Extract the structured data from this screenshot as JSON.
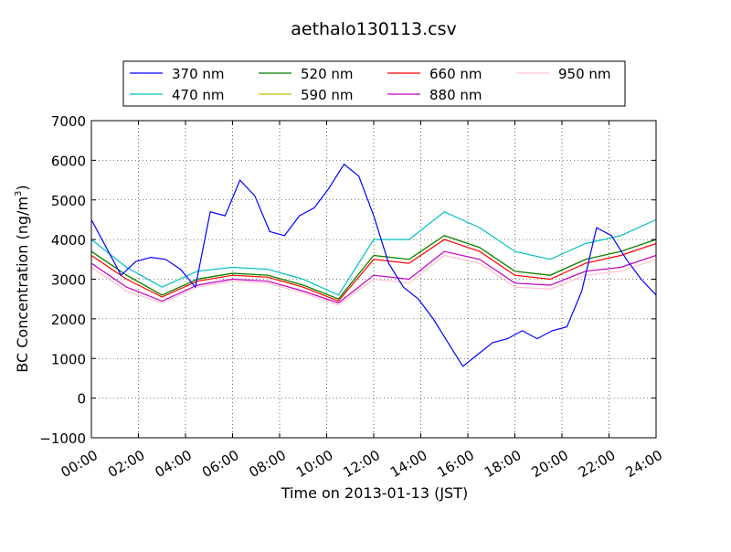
{
  "chart_data": {
    "type": "line",
    "title": "aethalo130113.csv",
    "xlabel": "Time on 2013-01-13 (JST)",
    "ylabel": "BC Concentration (ng/m³)",
    "ylabel_main": "BC Concentration (ng/m",
    "ylabel_sup": "3",
    "ylabel_end": ")",
    "xlim": [
      "00:00",
      "24:00"
    ],
    "ylim": [
      -1000,
      7000
    ],
    "grid": true,
    "legend_position": "top",
    "x_ticks": [
      "00:00",
      "02:00",
      "04:00",
      "06:00",
      "08:00",
      "10:00",
      "12:00",
      "14:00",
      "16:00",
      "18:00",
      "20:00",
      "22:00",
      "24:00"
    ],
    "y_ticks": [
      "−1000",
      "0",
      "1000",
      "2000",
      "3000",
      "4000",
      "5000",
      "6000",
      "7000"
    ],
    "x_hours": [
      0,
      0.5,
      1,
      1.5,
      2,
      2.5,
      3,
      3.5,
      4,
      4.5,
      5,
      5.5,
      6,
      6.5,
      7,
      7.5,
      8,
      8.5,
      9,
      9.5,
      10,
      10.5,
      11,
      11.5,
      12,
      12.5,
      13,
      13.5,
      14,
      14.5,
      15,
      15.5,
      16,
      16.5,
      17,
      17.5,
      18,
      18.5,
      19,
      19.5,
      20,
      20.5,
      21,
      21.5,
      22,
      22.5,
      23,
      23.5,
      24
    ],
    "series": [
      {
        "name": "370 nm",
        "color": "#0000ff",
        "values": [
          4500,
          3800,
          3100,
          3450,
          3550,
          3500,
          3250,
          2800,
          4700,
          4600,
          5500,
          5100,
          4200,
          4100,
          4600,
          4800,
          5300,
          5900,
          5600,
          4600,
          3400,
          2800,
          2500,
          2000,
          1400,
          800,
          1100,
          1400,
          1500,
          1700,
          1500,
          1700,
          1800,
          2700,
          4300,
          4100,
          3500,
          3000,
          2600
        ]
      },
      {
        "name": "470 nm",
        "color": "#00bfbf",
        "values": [
          4000,
          3300,
          2800,
          3200,
          3300,
          3250,
          3000,
          2600,
          4000,
          4000,
          4700,
          4300,
          3700,
          3500,
          3900,
          4100,
          4500
        ]
      },
      {
        "name": "520 nm",
        "color": "#008000",
        "values": [
          3700,
          3100,
          2600,
          3000,
          3150,
          3100,
          2850,
          2500,
          3600,
          3500,
          4100,
          3800,
          3200,
          3100,
          3500,
          3700,
          4000
        ]
      },
      {
        "name": "590 nm",
        "color": "#bfbf00",
        "values": [
          3700,
          3100,
          2600,
          3000,
          3150,
          3100,
          2850,
          2500,
          3600,
          3500,
          4100,
          3800,
          3200,
          3100,
          3500,
          3700,
          4000
        ]
      },
      {
        "name": "660 nm",
        "color": "#ff0000",
        "values": [
          3600,
          3000,
          2550,
          2950,
          3100,
          3050,
          2800,
          2450,
          3500,
          3400,
          4000,
          3700,
          3100,
          3000,
          3400,
          3600,
          3900
        ]
      },
      {
        "name": "880 nm",
        "color": "#bf00bf",
        "values": [
          3400,
          2800,
          2450,
          2850,
          3000,
          2950,
          2700,
          2400,
          3100,
          3000,
          3700,
          3500,
          2900,
          2850,
          3200,
          3300,
          3600
        ]
      },
      {
        "name": "950 nm",
        "color": "#ffc0cb",
        "values": [
          3300,
          2700,
          2400,
          2800,
          2950,
          2900,
          2650,
          2350,
          3000,
          2900,
          3600,
          3400,
          2800,
          2750,
          3100,
          3200,
          3500
        ]
      }
    ]
  }
}
